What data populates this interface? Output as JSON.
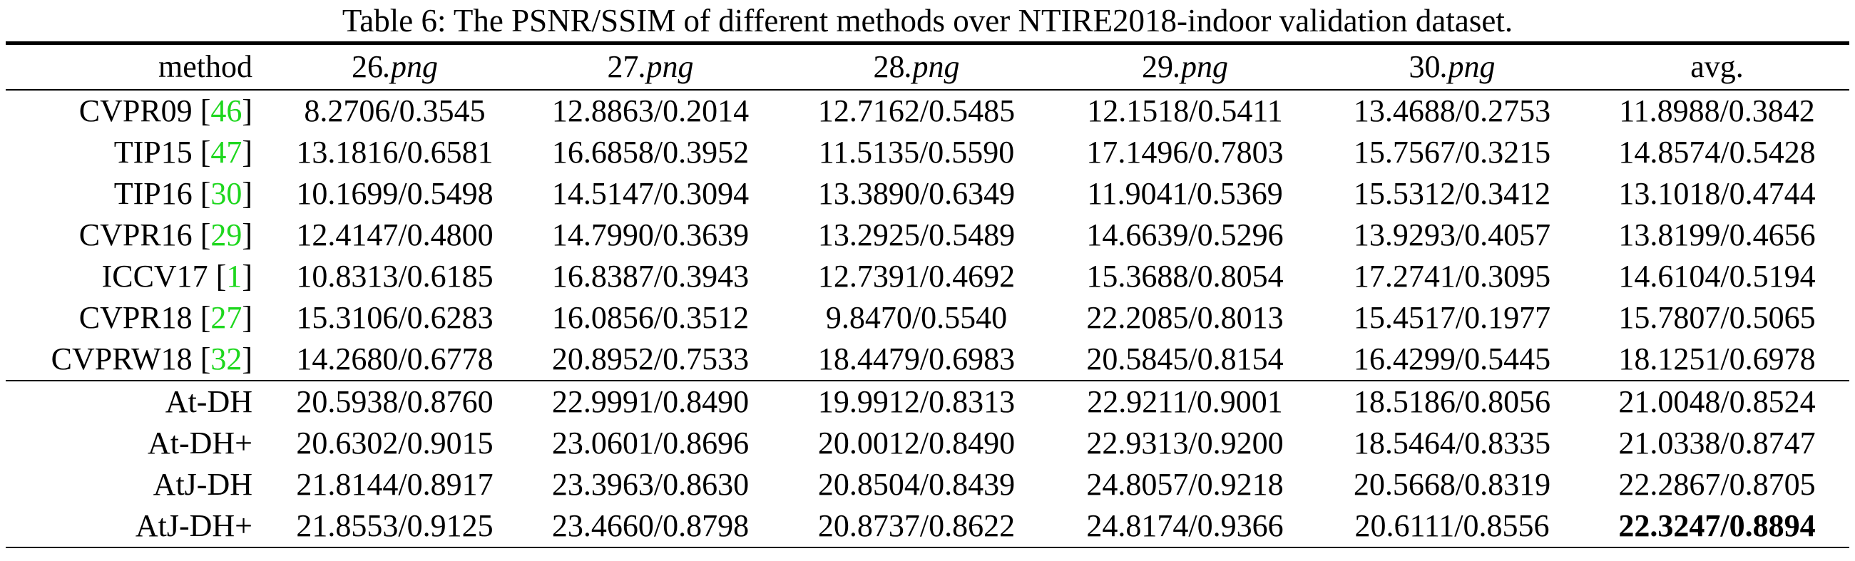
{
  "caption": "Table 6: The PSNR/SSIM of different methods over NTIRE2018-indoor validation dataset.",
  "table": {
    "header": [
      {
        "base": "method"
      },
      {
        "base": "26",
        "ext": ".png"
      },
      {
        "base": "27",
        "ext": ".png"
      },
      {
        "base": "28",
        "ext": ".png"
      },
      {
        "base": "29",
        "ext": ".png"
      },
      {
        "base": "30",
        "ext": ".png"
      },
      {
        "base": "avg."
      }
    ],
    "groups": [
      [
        [
          {
            "name": "CVPR09",
            "ref": "46"
          },
          "8.2706/0.3545",
          "12.8863/0.2014",
          "12.7162/0.5485",
          "12.1518/0.5411",
          "13.4688/0.2753",
          "11.8988/0.3842"
        ],
        [
          {
            "name": "TIP15",
            "ref": "47"
          },
          "13.1816/0.6581",
          "16.6858/0.3952",
          "11.5135/0.5590",
          "17.1496/0.7803",
          "15.7567/0.3215",
          "14.8574/0.5428"
        ],
        [
          {
            "name": "TIP16",
            "ref": "30"
          },
          "10.1699/0.5498",
          "14.5147/0.3094",
          "13.3890/0.6349",
          "11.9041/0.5369",
          "15.5312/0.3412",
          "13.1018/0.4744"
        ],
        [
          {
            "name": "CVPR16",
            "ref": "29"
          },
          "12.4147/0.4800",
          "14.7990/0.3639",
          "13.2925/0.5489",
          "14.6639/0.5296",
          "13.9293/0.4057",
          "13.8199/0.4656"
        ],
        [
          {
            "name": "ICCV17",
            "ref": "1"
          },
          "10.8313/0.6185",
          "16.8387/0.3943",
          "12.7391/0.4692",
          "15.3688/0.8054",
          "17.2741/0.3095",
          "14.6104/0.5194"
        ],
        [
          {
            "name": "CVPR18",
            "ref": "27"
          },
          "15.3106/0.6283",
          "16.0856/0.3512",
          "9.8470/0.5540",
          "22.2085/0.8013",
          "15.4517/0.1977",
          "15.7807/0.5065"
        ],
        [
          {
            "name": "CVPRW18",
            "ref": "32"
          },
          "14.2680/0.6778",
          "20.8952/0.7533",
          "18.4479/0.6983",
          "20.5845/0.8154",
          "16.4299/0.5445",
          "18.1251/0.6978"
        ]
      ],
      [
        [
          {
            "name": "At-DH"
          },
          "20.5938/0.8760",
          "22.9991/0.8490",
          "19.9912/0.8313",
          "22.9211/0.9001",
          "18.5186/0.8056",
          "21.0048/0.8524"
        ],
        [
          {
            "name": "At-DH+"
          },
          "20.6302/0.9015",
          "23.0601/0.8696",
          "20.0012/0.8490",
          "22.9313/0.9200",
          "18.5464/0.8335",
          "21.0338/0.8747"
        ],
        [
          {
            "name": "AtJ-DH"
          },
          "21.8144/0.8917",
          "23.3963/0.8630",
          "20.8504/0.8439",
          "24.8057/0.9218",
          "20.5668/0.8319",
          "22.2867/0.8705"
        ],
        [
          {
            "name": "AtJ-DH+"
          },
          "21.8553/0.9125",
          "23.4660/0.8798",
          "20.8737/0.8622",
          "24.8174/0.9366",
          "20.6111/0.8556",
          {
            "text": "22.3247/0.8894",
            "bold": true
          }
        ]
      ]
    ]
  }
}
